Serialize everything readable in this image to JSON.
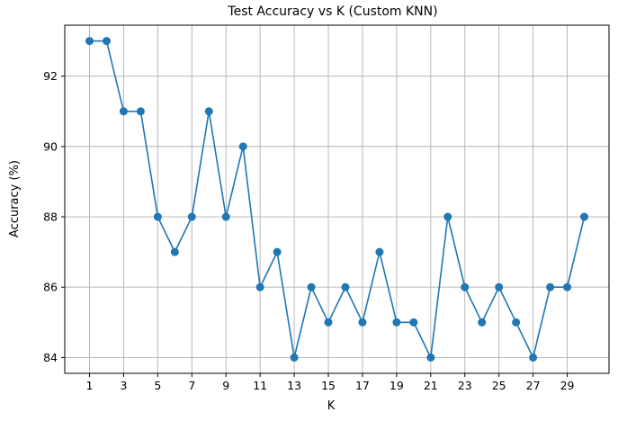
{
  "chart_data": {
    "type": "line",
    "title": "Test Accuracy vs K (Custom KNN)",
    "xlabel": "K",
    "ylabel": "Accuracy (%)",
    "x": [
      1,
      2,
      3,
      4,
      5,
      6,
      7,
      8,
      9,
      10,
      11,
      12,
      13,
      14,
      15,
      16,
      17,
      18,
      19,
      20,
      21,
      22,
      23,
      24,
      25,
      26,
      27,
      28,
      29,
      30
    ],
    "series": [
      {
        "values": [
          93,
          93,
          91,
          91,
          88,
          87,
          88,
          91,
          88,
          90,
          86,
          87,
          84,
          86,
          85,
          86,
          85,
          87,
          85,
          85,
          84,
          88,
          86,
          85,
          86,
          85,
          84,
          86,
          86,
          88
        ],
        "color": "#1f77b4",
        "marker": "circle"
      }
    ],
    "xticks": [
      1,
      3,
      5,
      7,
      9,
      11,
      13,
      15,
      17,
      19,
      21,
      23,
      25,
      27,
      29
    ],
    "yticks": [
      84,
      86,
      88,
      90,
      92
    ],
    "xlim": [
      -0.45,
      31.45
    ],
    "ylim": [
      83.55,
      93.45
    ],
    "grid": true,
    "grid_color": "#b0b0b0",
    "axis_color": "#000000"
  }
}
